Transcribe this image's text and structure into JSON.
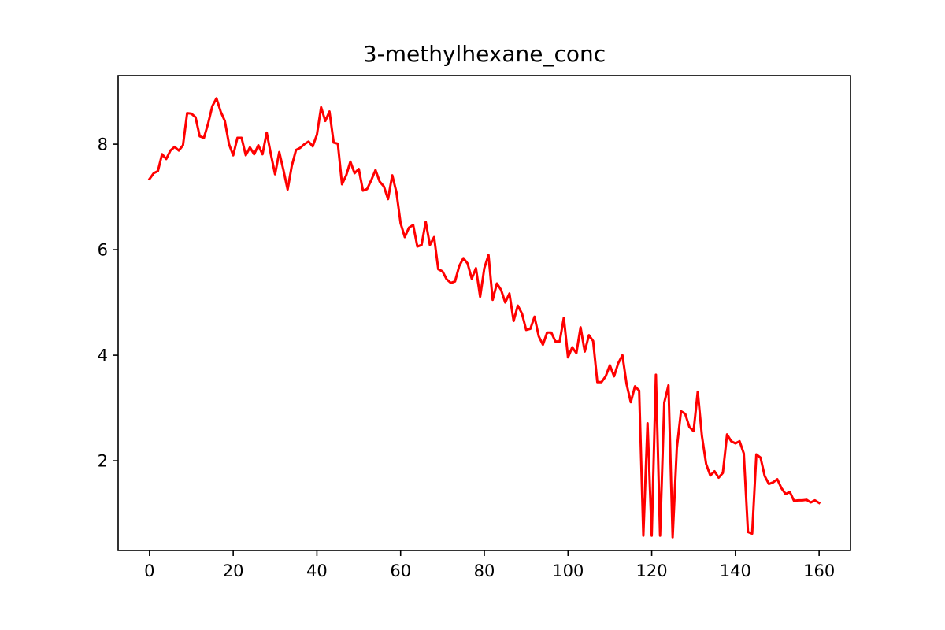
{
  "chart_data": {
    "type": "line",
    "title": "3-methylhexane_conc",
    "xlabel": "",
    "ylabel": "",
    "xlim": [
      -7.5,
      167.5
    ],
    "ylim": [
      0.3,
      9.3
    ],
    "xticks": [
      0,
      20,
      40,
      60,
      80,
      100,
      120,
      140,
      160
    ],
    "yticks": [
      2,
      4,
      6,
      8
    ],
    "grid": false,
    "legend": "none",
    "series": [
      {
        "color": "#ff0000",
        "x": [
          0,
          1,
          2,
          3,
          4,
          5,
          6,
          7,
          8,
          9,
          10,
          11,
          12,
          13,
          14,
          15,
          16,
          17,
          18,
          19,
          20,
          21,
          22,
          23,
          24,
          25,
          26,
          27,
          28,
          29,
          30,
          31,
          32,
          33,
          34,
          35,
          36,
          37,
          38,
          39,
          40,
          41,
          42,
          43,
          44,
          45,
          46,
          47,
          48,
          49,
          50,
          51,
          52,
          53,
          54,
          55,
          56,
          57,
          58,
          59,
          60,
          61,
          62,
          63,
          64,
          65,
          66,
          67,
          68,
          69,
          70,
          71,
          72,
          73,
          74,
          75,
          76,
          77,
          78,
          79,
          80,
          81,
          82,
          83,
          84,
          85,
          86,
          87,
          88,
          89,
          90,
          91,
          92,
          93,
          94,
          95,
          96,
          97,
          98,
          99,
          100,
          101,
          102,
          103,
          104,
          105,
          106,
          107,
          108,
          109,
          110,
          111,
          112,
          113,
          114,
          115,
          116,
          117,
          118,
          119,
          120,
          121,
          122,
          123,
          124,
          125,
          126,
          127,
          128,
          129,
          130,
          131,
          132,
          133,
          134,
          135,
          136,
          137,
          138,
          139,
          140,
          141,
          142,
          143,
          144,
          145,
          146,
          147,
          148,
          149,
          150,
          151,
          152,
          153,
          154,
          155,
          156,
          157,
          158,
          159,
          160
        ],
        "y": [
          7.34,
          7.45,
          7.49,
          7.81,
          7.72,
          7.88,
          7.95,
          7.88,
          7.98,
          8.59,
          8.58,
          8.51,
          8.15,
          8.12,
          8.39,
          8.72,
          8.87,
          8.62,
          8.44,
          8.0,
          7.79,
          8.12,
          8.12,
          7.79,
          7.94,
          7.81,
          7.98,
          7.81,
          8.22,
          7.81,
          7.43,
          7.85,
          7.51,
          7.14,
          7.59,
          7.89,
          7.93,
          8.0,
          8.05,
          7.96,
          8.18,
          8.7,
          8.44,
          8.62,
          8.03,
          8.01,
          7.24,
          7.41,
          7.67,
          7.45,
          7.53,
          7.12,
          7.15,
          7.32,
          7.51,
          7.29,
          7.2,
          6.96,
          7.41,
          7.09,
          6.5,
          6.24,
          6.42,
          6.47,
          6.06,
          6.09,
          6.53,
          6.09,
          6.24,
          5.63,
          5.59,
          5.44,
          5.37,
          5.4,
          5.69,
          5.84,
          5.74,
          5.45,
          5.65,
          5.11,
          5.65,
          5.9,
          5.05,
          5.36,
          5.24,
          5.0,
          5.17,
          4.65,
          4.94,
          4.79,
          4.48,
          4.5,
          4.73,
          4.36,
          4.2,
          4.43,
          4.43,
          4.26,
          4.26,
          4.71,
          3.96,
          4.15,
          4.04,
          4.53,
          4.07,
          4.38,
          4.27,
          3.49,
          3.49,
          3.6,
          3.81,
          3.6,
          3.85,
          4.0,
          3.45,
          3.11,
          3.41,
          3.33,
          0.58,
          2.71,
          0.58,
          3.63,
          0.58,
          3.1,
          3.43,
          0.55,
          2.24,
          2.94,
          2.89,
          2.64,
          2.56,
          3.31,
          2.47,
          1.94,
          1.72,
          1.8,
          1.68,
          1.77,
          2.5,
          2.37,
          2.33,
          2.37,
          2.14,
          0.65,
          0.62,
          2.12,
          2.06,
          1.71,
          1.56,
          1.59,
          1.65,
          1.48,
          1.37,
          1.41,
          1.24,
          1.25,
          1.25,
          1.26,
          1.21,
          1.25,
          1.2
        ]
      }
    ]
  }
}
